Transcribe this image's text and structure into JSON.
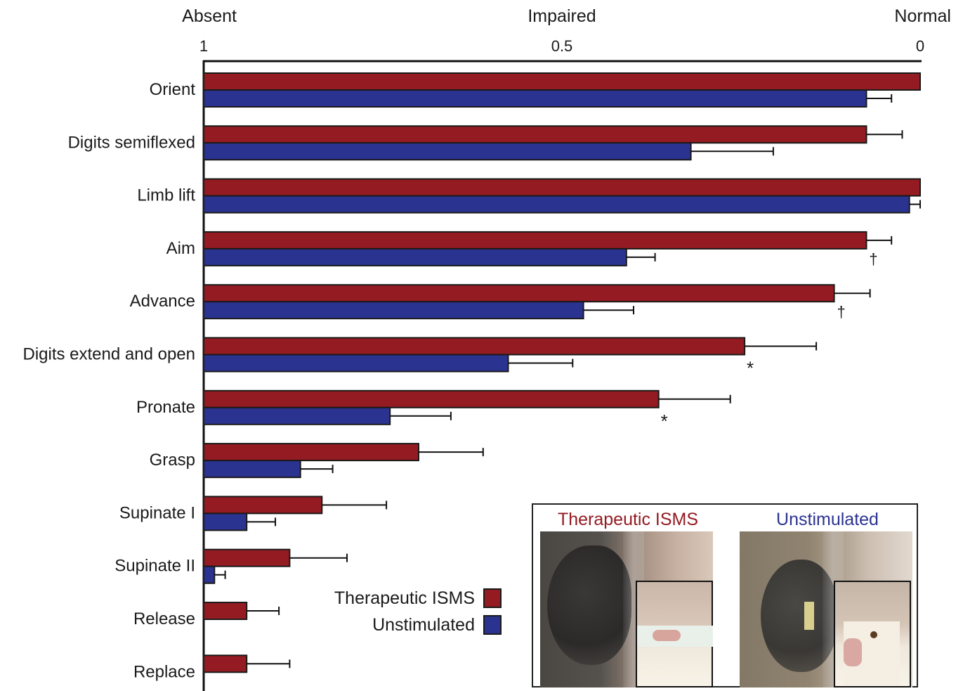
{
  "chart_data": {
    "type": "bar",
    "orientation": "horizontal",
    "x_axis": {
      "position": "top",
      "reversed": true,
      "range": [
        1,
        0
      ],
      "ticks": [
        {
          "value": 1,
          "label": "1"
        },
        {
          "value": 0.5,
          "label": "0.5"
        },
        {
          "value": 0,
          "label": "0"
        }
      ],
      "category_labels": [
        {
          "value": 1,
          "label": "Absent"
        },
        {
          "value": 0.5,
          "label": "Impaired"
        },
        {
          "value": 0,
          "label": "Normal"
        }
      ]
    },
    "categories": [
      "Orient",
      "Digits semiflexed",
      "Limb lift",
      "Aim",
      "Advance",
      "Digits extend and open",
      "Pronate",
      "Grasp",
      "Supinate I",
      "Supinate II",
      "Release",
      "Replace"
    ],
    "series": [
      {
        "name": "Therapeutic ISMS",
        "color": "#941b21",
        "values": [
          0.0,
          0.075,
          0.0,
          0.075,
          0.12,
          0.245,
          0.365,
          0.7,
          0.835,
          0.88,
          0.94,
          0.94
        ],
        "errors": [
          0.0,
          0.05,
          0.0,
          0.035,
          0.05,
          0.1,
          0.1,
          0.09,
          0.09,
          0.08,
          0.045,
          0.06
        ]
      },
      {
        "name": "Unstimulated",
        "color": "#2b3391",
        "values": [
          0.075,
          0.32,
          0.015,
          0.41,
          0.47,
          0.575,
          0.74,
          0.865,
          0.94,
          0.985,
          1.0,
          1.0
        ],
        "errors": [
          0.035,
          0.115,
          0.015,
          0.04,
          0.07,
          0.09,
          0.085,
          0.045,
          0.04,
          0.015,
          0.0,
          0.0
        ]
      }
    ],
    "annotations": [
      {
        "category": "Aim",
        "symbol": "†"
      },
      {
        "category": "Advance",
        "symbol": "†"
      },
      {
        "category": "Digits extend and open",
        "symbol": "*"
      },
      {
        "category": "Pronate",
        "symbol": "*"
      }
    ],
    "legend": {
      "placement": "bottom-center",
      "items": [
        "Therapeutic ISMS",
        "Unstimulated"
      ]
    }
  },
  "inset": {
    "panels": [
      {
        "label": "Therapeutic ISMS",
        "color": "#941b21"
      },
      {
        "label": "Unstimulated",
        "color": "#2b3391"
      }
    ]
  }
}
